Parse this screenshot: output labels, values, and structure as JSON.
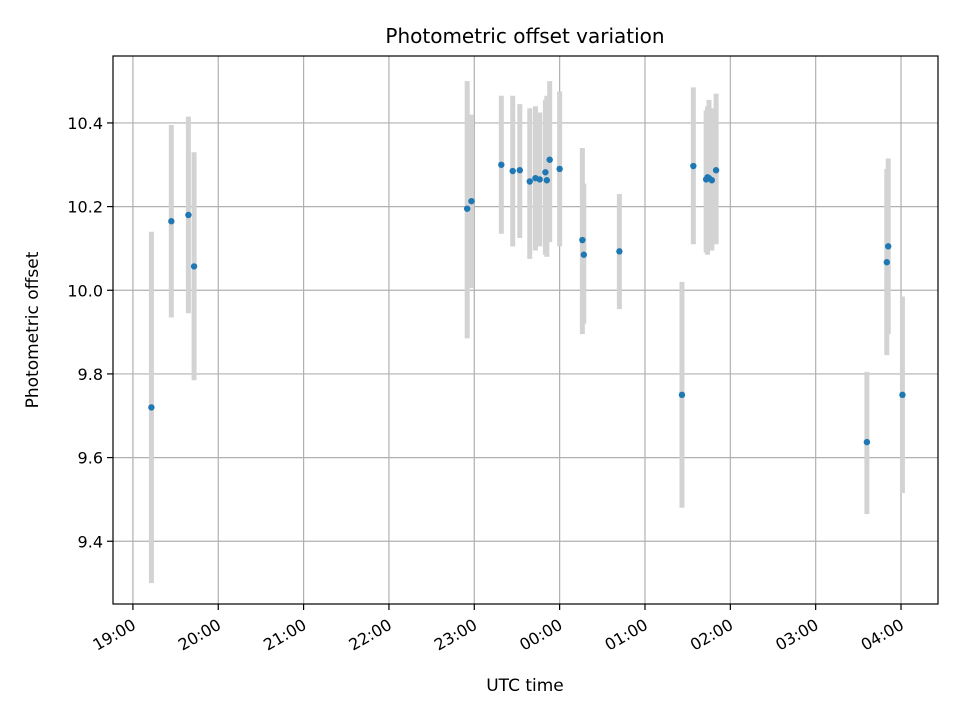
{
  "chart_data": {
    "type": "scatter",
    "title": "Photometric offset variation",
    "xlabel": "UTC time",
    "ylabel": "Photometric offset",
    "xlim": [
      "18:46",
      "04:26"
    ],
    "ylim": [
      9.25,
      10.56
    ],
    "grid": true,
    "error_bar_color": "#d3d3d3",
    "point_color": "#1f77b4",
    "x_ticks": [
      "19:00",
      "20:00",
      "21:00",
      "22:00",
      "23:00",
      "00:00",
      "01:00",
      "02:00",
      "03:00",
      "04:00"
    ],
    "y_ticks": [
      "9.4",
      "9.6",
      "9.8",
      "10.0",
      "10.2",
      "10.4"
    ],
    "series": [
      {
        "points": [
          {
            "x": "19:13",
            "y": 9.72,
            "ylow": 9.3,
            "yhigh": 10.14
          },
          {
            "x": "19:27",
            "y": 10.165,
            "ylow": 9.935,
            "yhigh": 10.395
          },
          {
            "x": "19:39",
            "y": 10.18,
            "ylow": 9.945,
            "yhigh": 10.415
          },
          {
            "x": "19:43",
            "y": 10.057,
            "ylow": 9.785,
            "yhigh": 10.33
          },
          {
            "x": "22:55",
            "y": 10.195,
            "ylow": 9.885,
            "yhigh": 10.5
          },
          {
            "x": "22:58",
            "y": 10.213,
            "ylow": 10.005,
            "yhigh": 10.42
          },
          {
            "x": "23:19",
            "y": 10.3,
            "ylow": 10.135,
            "yhigh": 10.465
          },
          {
            "x": "23:27",
            "y": 10.285,
            "ylow": 10.105,
            "yhigh": 10.465
          },
          {
            "x": "23:32",
            "y": 10.287,
            "ylow": 10.125,
            "yhigh": 10.445
          },
          {
            "x": "23:39",
            "y": 10.26,
            "ylow": 10.075,
            "yhigh": 10.435
          },
          {
            "x": "23:43",
            "y": 10.268,
            "ylow": 10.095,
            "yhigh": 10.44
          },
          {
            "x": "23:46",
            "y": 10.265,
            "ylow": 10.105,
            "yhigh": 10.425
          },
          {
            "x": "23:50",
            "y": 10.282,
            "ylow": 10.085,
            "yhigh": 10.455
          },
          {
            "x": "23:51",
            "y": 10.263,
            "ylow": 10.08,
            "yhigh": 10.465
          },
          {
            "x": "23:53",
            "y": 10.312,
            "ylow": 10.115,
            "yhigh": 10.5
          },
          {
            "x": "00:00",
            "y": 10.29,
            "ylow": 10.105,
            "yhigh": 10.475
          },
          {
            "x": "00:16",
            "y": 10.12,
            "ylow": 9.895,
            "yhigh": 10.34
          },
          {
            "x": "00:17",
            "y": 10.085,
            "ylow": 9.92,
            "yhigh": 10.255
          },
          {
            "x": "00:42",
            "y": 10.093,
            "ylow": 9.955,
            "yhigh": 10.23
          },
          {
            "x": "01:26",
            "y": 9.75,
            "ylow": 9.48,
            "yhigh": 10.02
          },
          {
            "x": "01:34",
            "y": 10.297,
            "ylow": 10.11,
            "yhigh": 10.485
          },
          {
            "x": "01:43",
            "y": 10.265,
            "ylow": 10.09,
            "yhigh": 10.43
          },
          {
            "x": "01:44",
            "y": 10.27,
            "ylow": 10.085,
            "yhigh": 10.44
          },
          {
            "x": "01:45",
            "y": 10.268,
            "ylow": 10.1,
            "yhigh": 10.455
          },
          {
            "x": "01:47",
            "y": 10.263,
            "ylow": 10.095,
            "yhigh": 10.435
          },
          {
            "x": "01:50",
            "y": 10.287,
            "ylow": 10.11,
            "yhigh": 10.47
          },
          {
            "x": "03:36",
            "y": 9.637,
            "ylow": 9.465,
            "yhigh": 9.805
          },
          {
            "x": "03:50",
            "y": 10.067,
            "ylow": 9.845,
            "yhigh": 10.29
          },
          {
            "x": "03:51",
            "y": 10.105,
            "ylow": 9.895,
            "yhigh": 10.315
          },
          {
            "x": "04:01",
            "y": 9.75,
            "ylow": 9.515,
            "yhigh": 9.985
          }
        ]
      }
    ]
  }
}
